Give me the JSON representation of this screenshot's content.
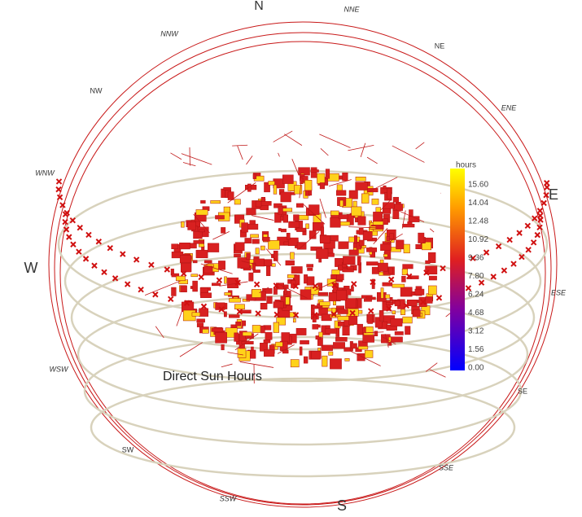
{
  "compass": [
    "N",
    "NNE",
    "NE",
    "ENE",
    "E",
    "ESE",
    "SE",
    "SSE",
    "S",
    "SSW",
    "SW",
    "WSW",
    "W",
    "WNW",
    "NW",
    "NNW"
  ],
  "title": "Direct Sun Hours",
  "legend": {
    "title": "hours",
    "ticks": [
      "15.60",
      "14.04",
      "12.48",
      "10.92",
      "9.36",
      "7.80",
      "6.24",
      "4.68",
      "3.12",
      "1.56",
      "0.00"
    ]
  }
}
